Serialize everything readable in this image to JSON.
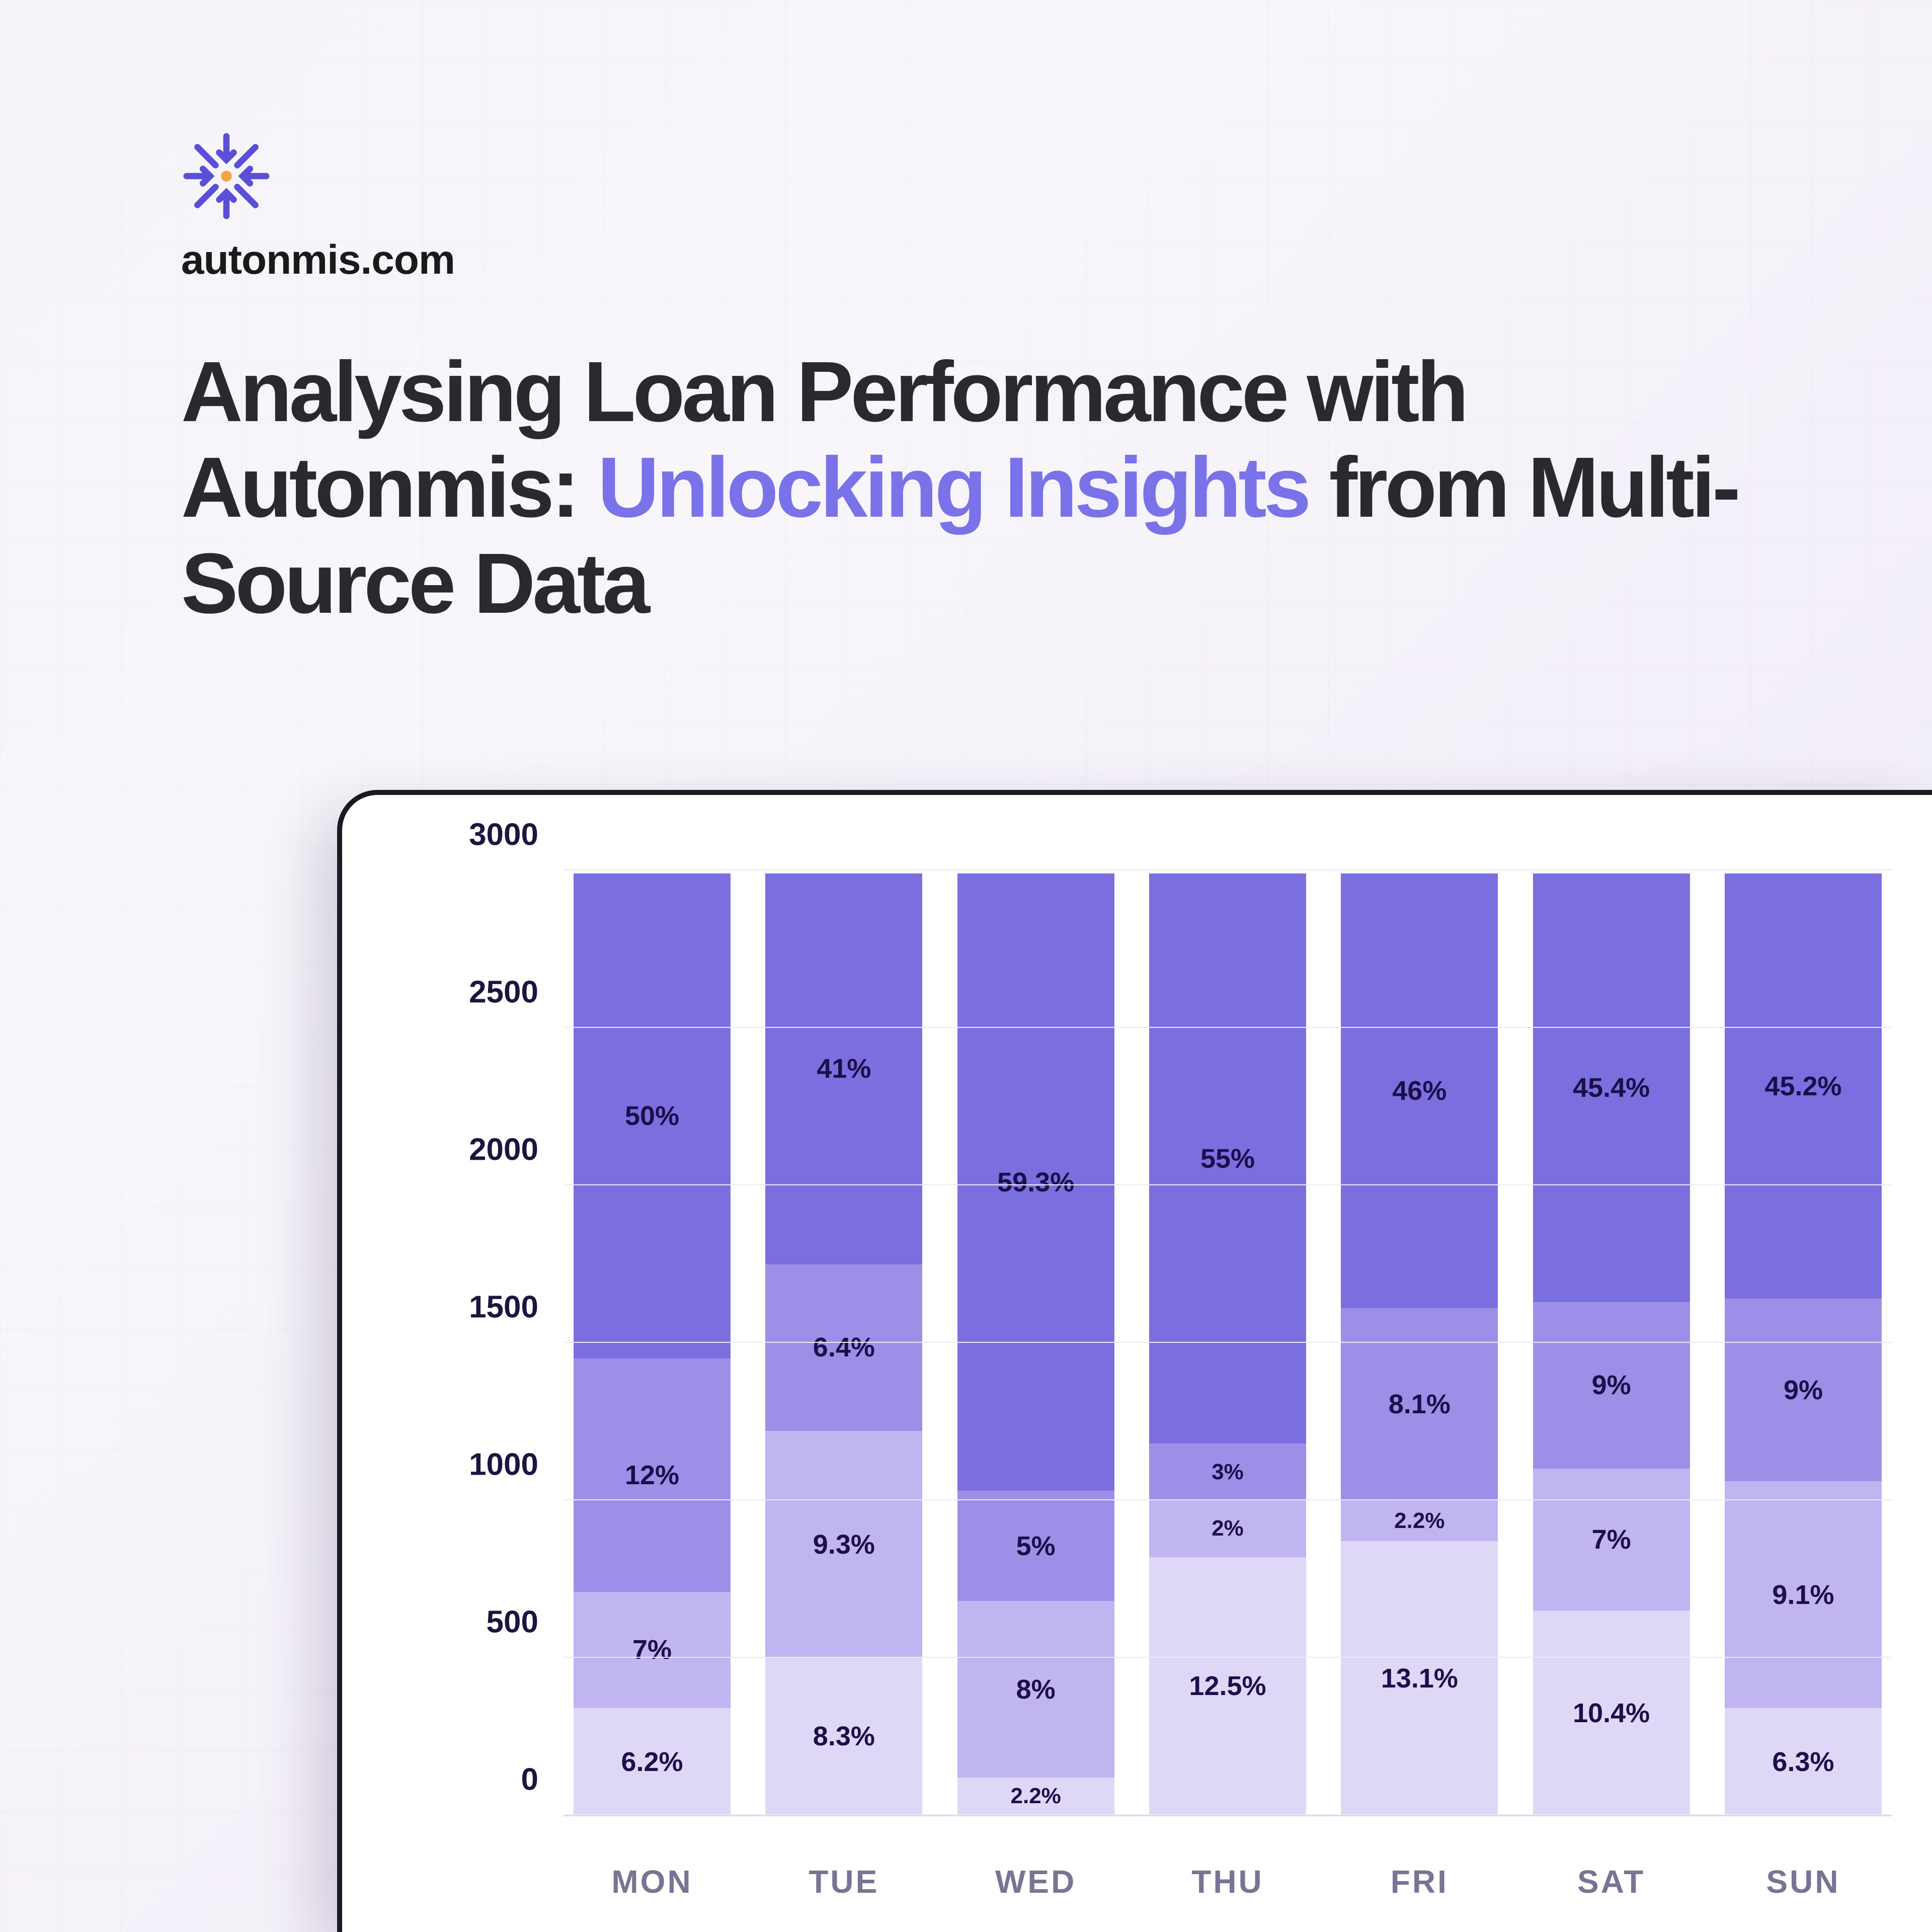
{
  "brand": {
    "site": "autonmis.com"
  },
  "headline": {
    "part1": "Analysing Loan Performance with Autonmis: ",
    "accent": "Unlocking Insights",
    "part2": " from Multi-Source Data"
  },
  "chart": {
    "type": "stacked-bar",
    "background_color": "#ffffff",
    "card_border_color": "#1b1b1f",
    "grid_color": "#ece9f5",
    "axis_color": "#d9d4ea",
    "ylim": [
      0,
      3000
    ],
    "yticks": [
      0,
      500,
      1000,
      1500,
      2000,
      2500,
      3000
    ],
    "ytick_fontsize": 62,
    "xlabel_fontsize": 64,
    "xlabel_color": "#7b7394",
    "value_label_color": "#1c0f4a",
    "value_label_fontsize": 54,
    "bar_width_pct": 12,
    "categories": [
      "MON",
      "TUE",
      "WED",
      "THU",
      "FRI",
      "SAT",
      "SUN"
    ],
    "segment_colors": [
      "#dfd7f6",
      "#c0b4f1",
      "#9d8fe8",
      "#7b6fe0"
    ],
    "bars": [
      {
        "day": "MON",
        "segments": [
          {
            "value": 340,
            "label": "6.2%"
          },
          {
            "value": 370,
            "label": "7%"
          },
          {
            "value": 740,
            "label": "12%"
          },
          {
            "value": 1540,
            "label": "50%"
          }
        ]
      },
      {
        "day": "TUE",
        "segments": [
          {
            "value": 500,
            "label": "8.3%"
          },
          {
            "value": 720,
            "label": "9.3%"
          },
          {
            "value": 530,
            "label": "6.4%"
          },
          {
            "value": 1240,
            "label": "41%"
          }
        ]
      },
      {
        "day": "WED",
        "segments": [
          {
            "value": 120,
            "label": "2.2%"
          },
          {
            "value": 560,
            "label": "8%"
          },
          {
            "value": 350,
            "label": "5%"
          },
          {
            "value": 1960,
            "label": "59.3%"
          }
        ]
      },
      {
        "day": "THU",
        "segments": [
          {
            "value": 820,
            "label": "12.5%"
          },
          {
            "value": 180,
            "label": "2%"
          },
          {
            "value": 180,
            "label": "3%"
          },
          {
            "value": 1810,
            "label": "55%"
          }
        ]
      },
      {
        "day": "FRI",
        "segments": [
          {
            "value": 870,
            "label": "13.1%"
          },
          {
            "value": 130,
            "label": "2.2%"
          },
          {
            "value": 610,
            "label": "8.1%"
          },
          {
            "value": 1380,
            "label": "46%"
          }
        ]
      },
      {
        "day": "SAT",
        "segments": [
          {
            "value": 650,
            "label": "10.4%"
          },
          {
            "value": 450,
            "label": "7%"
          },
          {
            "value": 530,
            "label": "9%"
          },
          {
            "value": 1360,
            "label": "45.4%"
          }
        ]
      },
      {
        "day": "SUN",
        "segments": [
          {
            "value": 340,
            "label": "6.3%"
          },
          {
            "value": 720,
            "label": "9.1%"
          },
          {
            "value": 580,
            "label": "9%"
          },
          {
            "value": 1350,
            "label": "45.2%"
          }
        ]
      }
    ]
  }
}
